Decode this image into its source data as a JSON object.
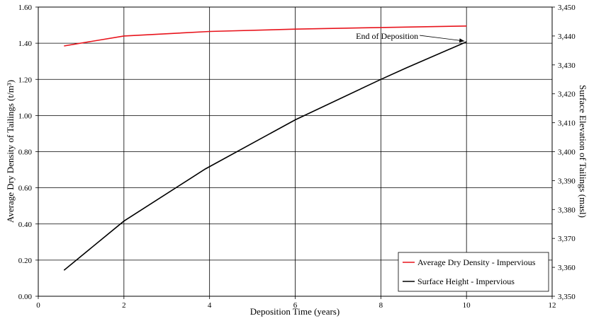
{
  "chart_data": {
    "type": "line",
    "xlabel": "Deposition Time (years)",
    "ylabel": "Average Dry Density of Tailings (t/m³)",
    "y2label": "Surface Elevation of Tailings (masl)",
    "xlim": [
      0,
      12
    ],
    "ylim": [
      0,
      1.6
    ],
    "y2lim": [
      3350,
      3450
    ],
    "x_ticks": [
      "0",
      "2",
      "4",
      "6",
      "8",
      "10",
      "12"
    ],
    "y_ticks": [
      "0.00",
      "0.20",
      "0.40",
      "0.60",
      "0.80",
      "1.00",
      "1.20",
      "1.40",
      "1.60"
    ],
    "y2_ticks": [
      "3,350",
      "3,360",
      "3,370",
      "3,380",
      "3,390",
      "3,400",
      "3,410",
      "3,420",
      "3,430",
      "3,440",
      "3,450"
    ],
    "grid": true,
    "legend_position": "bottom-right",
    "series": [
      {
        "name": "Average Dry Density - Impervious",
        "axis": "left",
        "color": "#e8141c",
        "x": [
          0.6,
          2.0,
          4.0,
          6.0,
          8.0,
          10.0
        ],
        "y": [
          1.385,
          1.44,
          1.465,
          1.478,
          1.487,
          1.495
        ]
      },
      {
        "name": "Surface Height - Impervious",
        "axis": "right",
        "color": "#000000",
        "x": [
          0.6,
          2.0,
          3.9,
          6.0,
          8.0,
          8.6,
          10.0
        ],
        "y": [
          3359,
          3376,
          3394,
          3411,
          3425,
          3429,
          3438
        ]
      }
    ],
    "annotations": [
      {
        "text": "End of Deposition",
        "x": 10.0,
        "y2": 3438
      }
    ]
  }
}
